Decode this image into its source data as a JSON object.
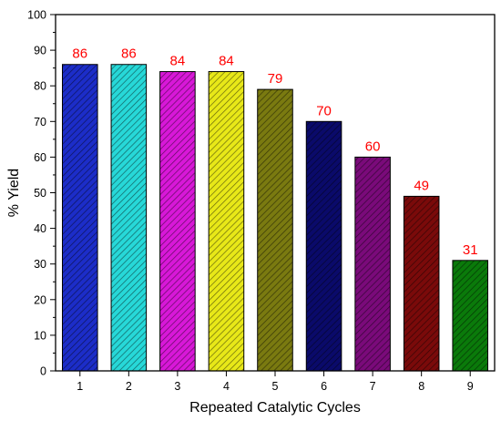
{
  "chart_data": {
    "type": "bar",
    "title": "",
    "xlabel": "Repeated Catalytic Cycles",
    "ylabel": "% Yield",
    "ylim": [
      0,
      100
    ],
    "yticks": [
      0,
      10,
      20,
      30,
      40,
      50,
      60,
      70,
      80,
      90,
      100
    ],
    "categories": [
      "1",
      "2",
      "3",
      "4",
      "5",
      "6",
      "7",
      "8",
      "9"
    ],
    "values": [
      86,
      86,
      84,
      84,
      79,
      70,
      60,
      49,
      31
    ],
    "data_labels": [
      "86",
      "86",
      "84",
      "84",
      "79",
      "70",
      "60",
      "49",
      "31"
    ],
    "bar_colors": [
      "#1c2dc8",
      "#27d8d8",
      "#d818d8",
      "#e8e818",
      "#7a7a10",
      "#0a0a6a",
      "#7a0a7a",
      "#7a0a0a",
      "#0a7a0a"
    ],
    "data_label_color": "#ff0000",
    "hatch": "diagonal",
    "grid": false,
    "legend": "none"
  }
}
